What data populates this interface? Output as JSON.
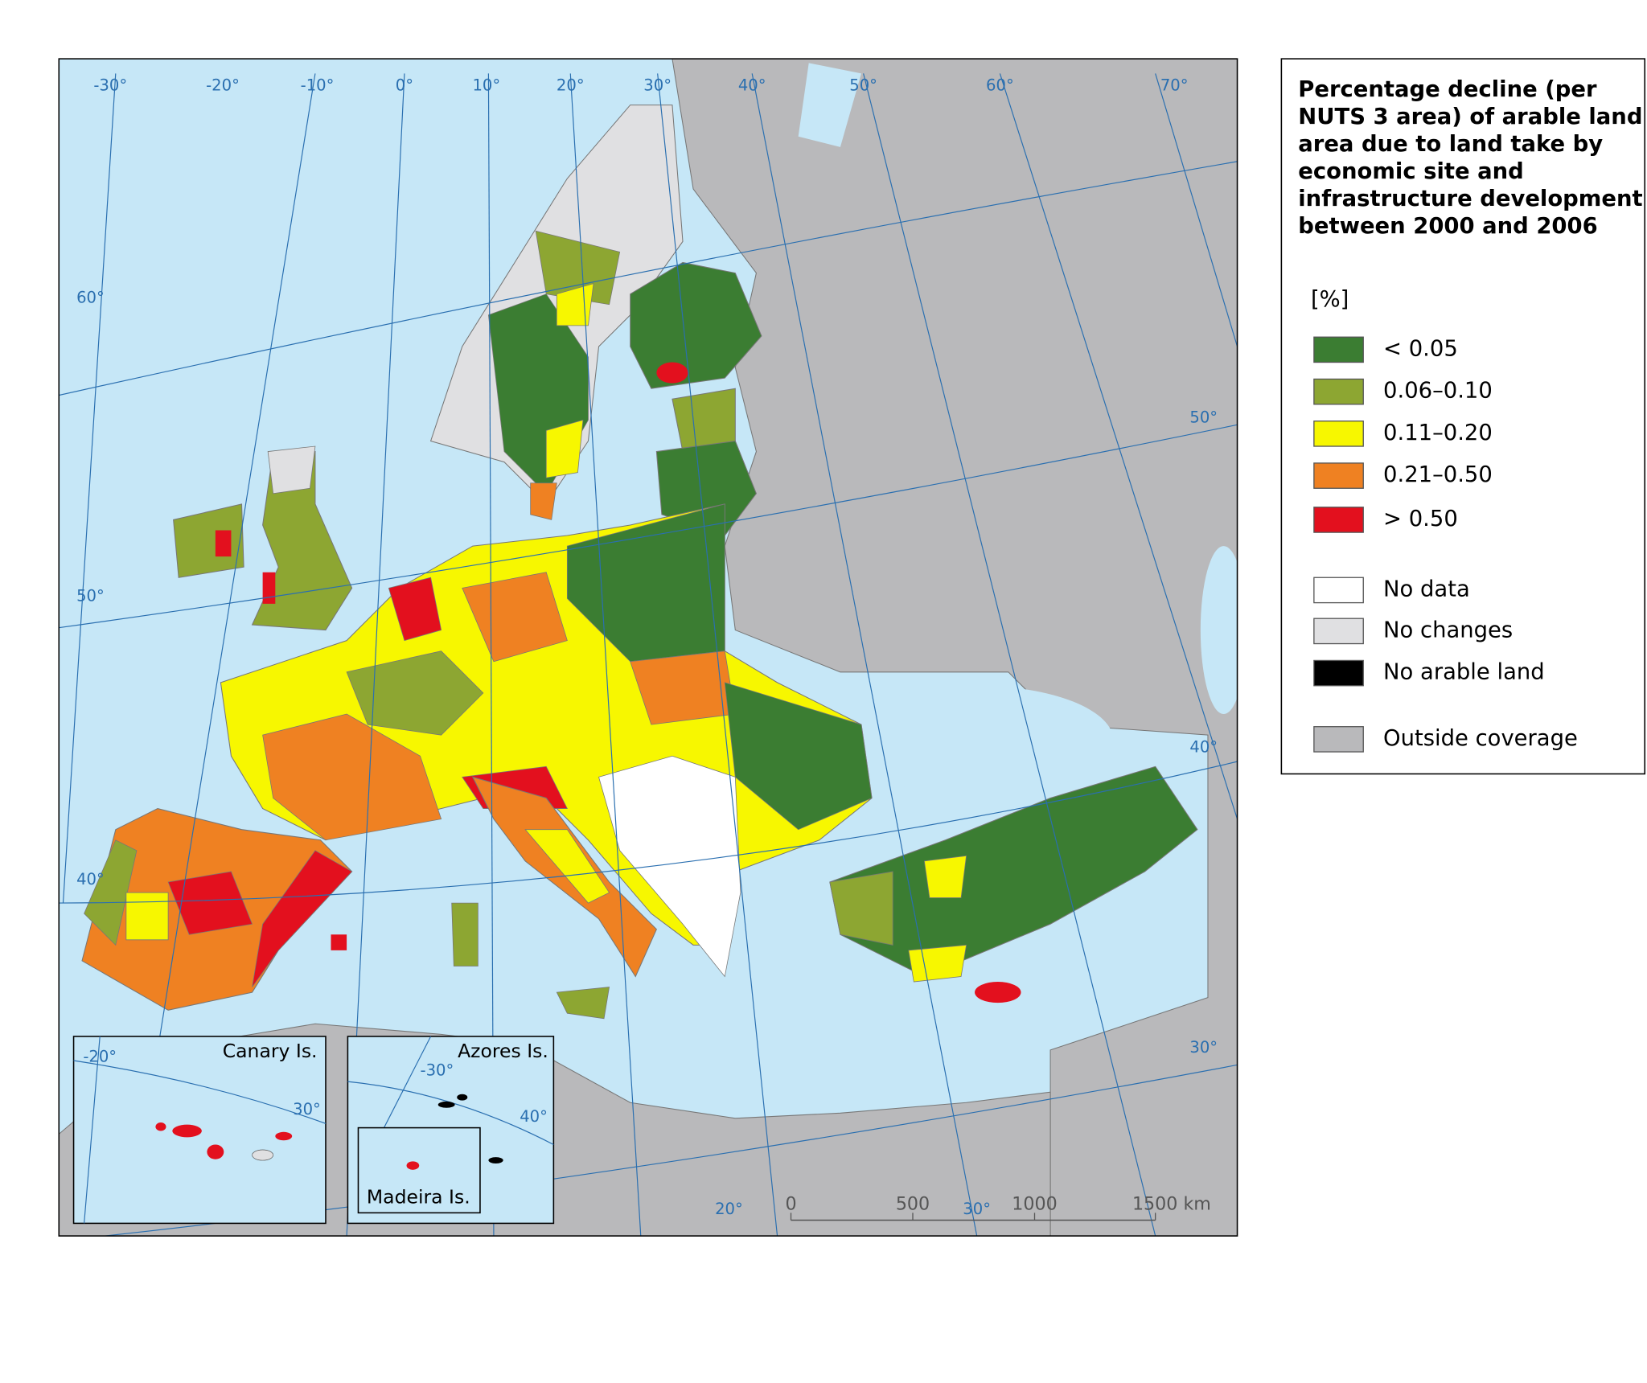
{
  "map": {
    "graticule_labels": [
      "-30°",
      "-20°",
      "-10°",
      "0°",
      "10°",
      "20°",
      "30°",
      "40°",
      "50°",
      "60°",
      "70°",
      "60°",
      "50°",
      "40°",
      "50°",
      "40°",
      "30°",
      "20°",
      "30°"
    ],
    "insets": [
      {
        "label": "Canary Is.",
        "graticule_labels": [
          "-20°",
          "30°"
        ]
      },
      {
        "label": "Azores Is.",
        "graticule_labels": [
          "-30°",
          "40°"
        ]
      },
      {
        "label": "Madeira Is."
      }
    ],
    "scale_bar": [
      "0",
      "500",
      "1000",
      "1500 km"
    ]
  },
  "legend": {
    "title": "Percentage decline (per NUTS 3 area) of arable land area due to land take by economic site and infrastructure development between 2000 and 2006",
    "unit": "[%]",
    "items": [
      {
        "label": "< 0.05",
        "color": "#3b7d32"
      },
      {
        "label": "0.06–0.10",
        "color": "#8da632"
      },
      {
        "label": "0.11–0.20",
        "color": "#f7f700"
      },
      {
        "label": "0.21–0.50",
        "color": "#ef8122"
      },
      {
        "label": "> 0.50",
        "color": "#e3101e"
      },
      {
        "label": "No data",
        "color": "#ffffff"
      },
      {
        "label": "No changes",
        "color": "#e0e0e2"
      },
      {
        "label": "No arable land",
        "color": "#000000"
      },
      {
        "label": "Outside coverage",
        "color": "#b9b9bb"
      }
    ]
  }
}
